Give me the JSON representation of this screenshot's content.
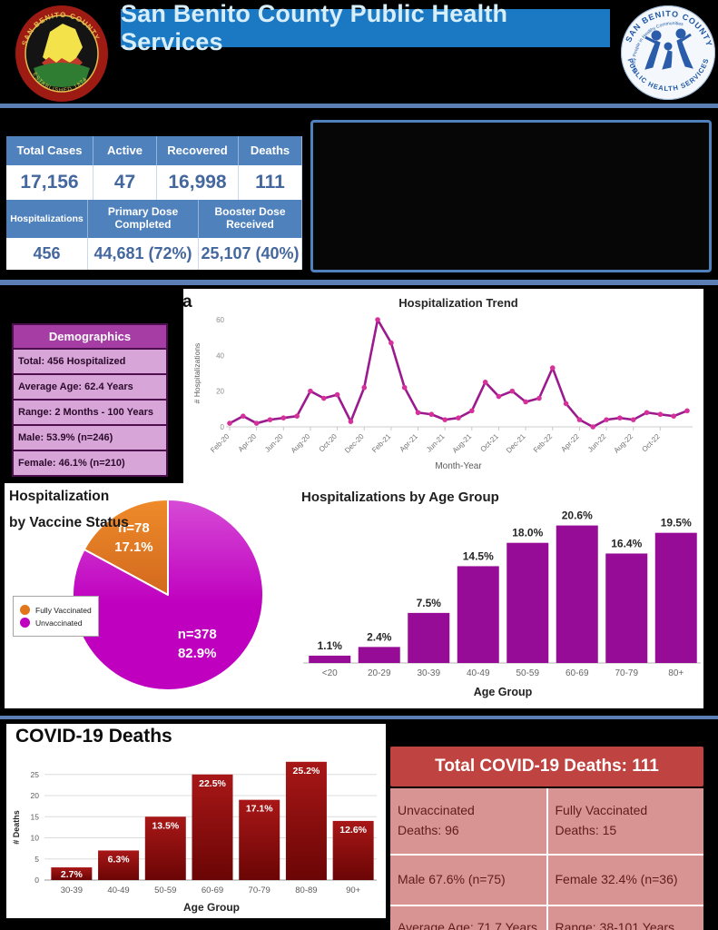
{
  "header": {
    "title": "San Benito County Public Health Services"
  },
  "logos": {
    "left_seal_top_text": "SAN BENITO COUNTY",
    "left_seal_bottom_text": "ESTABLISHED 1874",
    "right_top_text": "SAN BENITO COUNTY",
    "right_bottom_text": "PUBLIC HEALTH SERVICES",
    "right_center_text": "Healthy People in Healthy Communities"
  },
  "stats": {
    "row1": {
      "headers": [
        "Total Cases",
        "Active",
        "Recovered",
        "Deaths"
      ],
      "values": [
        "17,156",
        "47",
        "16,998",
        "111"
      ]
    },
    "row2": {
      "headers": [
        "Hospitalizations",
        "Primary Dose\nCompleted",
        "Booster Dose\nReceived"
      ],
      "values": [
        "456",
        "44,681 (72%)",
        "25,107 (40%)"
      ]
    }
  },
  "misc": {
    "partial_letter": "a"
  },
  "demographics": {
    "title": "Demographics",
    "rows": [
      "Total: 456 Hospitalized",
      "Average Age: 62.4 Years",
      "Range: 2 Months - 100 Years",
      "Male: 53.9% (n=246)",
      "Female: 46.1% (n=210)"
    ]
  },
  "chart_data": [
    {
      "type": "line",
      "title": "Hospitalization Trend",
      "xlabel": "Month-Year",
      "ylabel": "# Hospitalizations",
      "ylim": [
        0,
        60
      ],
      "yticks": [
        0,
        20,
        40,
        60
      ],
      "x": [
        "Feb-20",
        "Mar-20",
        "Apr-20",
        "May-20",
        "Jun-20",
        "Jul-20",
        "Aug-20",
        "Sep-20",
        "Oct-20",
        "Nov-20",
        "Dec-20",
        "Jan-21",
        "Feb-21",
        "Mar-21",
        "Apr-21",
        "May-21",
        "Jun-21",
        "Jul-21",
        "Aug-21",
        "Sep-21",
        "Oct-21",
        "Nov-21",
        "Dec-21",
        "Jan-22",
        "Feb-22",
        "Mar-22",
        "Apr-22",
        "May-22",
        "Jun-22",
        "Jul-22",
        "Aug-22",
        "Sep-22",
        "Oct-22",
        "Nov-22",
        "Dec-22"
      ],
      "xtick_labels": [
        "Feb-20",
        "Apr-20",
        "Jun-20",
        "Aug-20",
        "Oct-20",
        "Dec-20",
        "Feb-21",
        "Apr-21",
        "Jun-21",
        "Aug-21",
        "Oct-21",
        "Dec-21",
        "Feb-22",
        "Apr-22",
        "Jun-22",
        "Aug-22",
        "Oct-22"
      ],
      "values": [
        2,
        6,
        2,
        4,
        5,
        6,
        20,
        16,
        18,
        3,
        22,
        60,
        47,
        22,
        8,
        7,
        4,
        5,
        9,
        25,
        17,
        20,
        14,
        16,
        33,
        13,
        4,
        0,
        4,
        5,
        4,
        8,
        7,
        6,
        9
      ],
      "line_color": "#9b1a8e",
      "marker_color": "#d6309a"
    },
    {
      "type": "pie",
      "title": "Hospitalization by Vaccine Status",
      "title_lines": [
        "Hospitalization",
        "by Vaccine Status"
      ],
      "slices": [
        {
          "label": "Fully Vaccinated",
          "n_label": "n=78",
          "pct": 17.1,
          "pct_label": "17.1%",
          "color": "#e2761b"
        },
        {
          "label": "Unvaccinated",
          "n_label": "n=378",
          "pct": 82.9,
          "pct_label": "82.9%",
          "color": "#bf00bf"
        }
      ],
      "legend_position": "left"
    },
    {
      "type": "bar",
      "title": "Hospitalizations by Age Group",
      "xlabel": "Age Group",
      "categories": [
        "<20",
        "20-29",
        "30-39",
        "40-49",
        "50-59",
        "60-69",
        "70-79",
        "80+"
      ],
      "values": [
        1.1,
        2.4,
        7.5,
        14.5,
        18.0,
        20.6,
        16.4,
        19.5
      ],
      "value_labels": [
        "1.1%",
        "2.4%",
        "7.5%",
        "14.5%",
        "18.0%",
        "20.6%",
        "16.4%",
        "19.5%"
      ],
      "bar_color": "#960c96"
    },
    {
      "type": "bar",
      "title": "COVID-19 Deaths",
      "xlabel": "Age Group",
      "ylabel": "# Deaths",
      "yticks": [
        0,
        5,
        10,
        15,
        20,
        25
      ],
      "categories": [
        "30-39",
        "40-49",
        "50-59",
        "60-69",
        "70-79",
        "80-89",
        "90+"
      ],
      "values": [
        3,
        7,
        15,
        25,
        19,
        28,
        14
      ],
      "value_labels": [
        "2.7%",
        "6.3%",
        "13.5%",
        "22.5%",
        "17.1%",
        "25.2%",
        "12.6%"
      ],
      "bar_color_top": "#a81717",
      "bar_color_bottom": "#6b0505"
    }
  ],
  "deaths_table": {
    "title": "Total COVID-19 Deaths: 111",
    "cells": [
      [
        "Unvaccinated\nDeaths: 96",
        "Fully Vaccinated\nDeaths: 15"
      ],
      [
        "Male 67.6% (n=75)",
        "Female 32.4% (n=36)"
      ],
      [
        "Average Age: 71.7 Years",
        "Range: 38-101 Years"
      ]
    ]
  },
  "colors": {
    "steel_blue": "#4f81bd",
    "header_blue": "#1b79c4",
    "purple_header": "#a53da5",
    "purple_light": "#d8a5d8",
    "pie_orange": "#e2761b",
    "pie_magenta": "#bf00bf",
    "age_bar_purple": "#960c96",
    "deaths_red": "#a81717",
    "table_red": "#bf4340",
    "table_pink": "#d79492"
  }
}
